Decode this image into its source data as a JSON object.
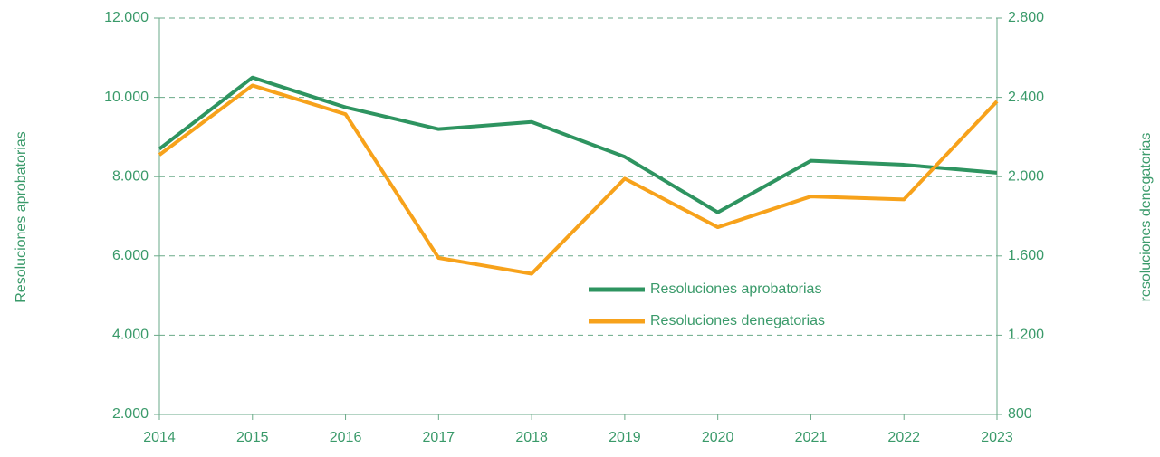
{
  "chart_data": {
    "type": "line",
    "x": [
      2014,
      2015,
      2016,
      2017,
      2018,
      2019,
      2020,
      2021,
      2022,
      2023
    ],
    "xlim": [
      2014,
      2023
    ],
    "y_label": "Resoluciones aprobatorias",
    "y2_label": "resoluciones denegatorias",
    "ylim": [
      2000,
      12000
    ],
    "yticks": [
      {
        "value": 2000,
        "label": "2.000"
      },
      {
        "value": 4000,
        "label": "4.000"
      },
      {
        "value": 6000,
        "label": "6.000"
      },
      {
        "value": 8000,
        "label": "8.000"
      },
      {
        "value": 10000,
        "label": "10.000"
      },
      {
        "value": 12000,
        "label": "12.000"
      }
    ],
    "y2lim": [
      800,
      2800
    ],
    "y2ticks": [
      800,
      {
        "value": 1200,
        "label": "1.200"
      },
      {
        "value": 1600,
        "label": "1.600"
      },
      {
        "value": 2000,
        "label": "2.000"
      },
      {
        "value": 2400,
        "label": "2.400"
      },
      {
        "value": 2800,
        "label": "2.800"
      }
    ],
    "grid": true,
    "series": [
      {
        "name": "Resoluciones aprobatorias",
        "color": "#2e9460",
        "values": [
          8700,
          10500,
          9750,
          9200,
          9380,
          8500,
          7100,
          8400,
          8300,
          8100
        ]
      },
      {
        "name": "Resoluciones denegatorias",
        "color": "#f7a21b",
        "axis": "y2",
        "values": [
          2110,
          2460,
          2315,
          1590,
          1510,
          1990,
          1745,
          1900,
          1885,
          2380
        ]
      }
    ]
  }
}
